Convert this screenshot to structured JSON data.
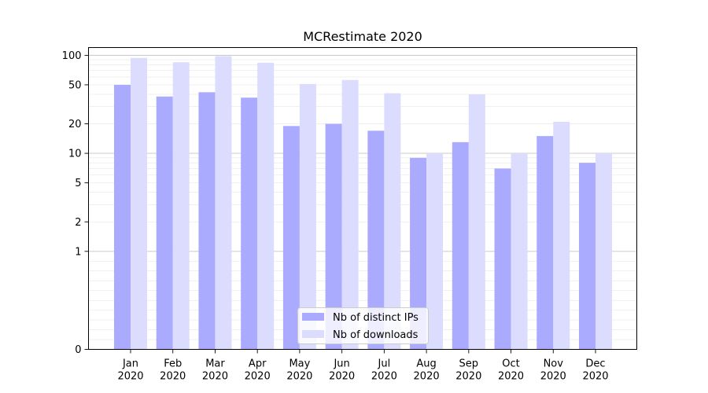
{
  "chart_data": {
    "type": "bar",
    "title": "MCRestimate 2020",
    "xlabel": "",
    "ylabel": "",
    "yscale": "symlog",
    "ylim": [
      0,
      120
    ],
    "yticks": [
      0,
      1,
      2,
      5,
      10,
      20,
      50,
      100
    ],
    "ytick_labels": [
      "0",
      "1",
      "2",
      "5",
      "10",
      "20",
      "50",
      "100"
    ],
    "grid": true,
    "legend_position": "bottom-center",
    "categories": [
      [
        "Jan",
        "2020"
      ],
      [
        "Feb",
        "2020"
      ],
      [
        "Mar",
        "2020"
      ],
      [
        "Apr",
        "2020"
      ],
      [
        "May",
        "2020"
      ],
      [
        "Jun",
        "2020"
      ],
      [
        "Jul",
        "2020"
      ],
      [
        "Aug",
        "2020"
      ],
      [
        "Sep",
        "2020"
      ],
      [
        "Oct",
        "2020"
      ],
      [
        "Nov",
        "2020"
      ],
      [
        "Dec",
        "2020"
      ]
    ],
    "series": [
      {
        "name": "Nb of distinct IPs",
        "color": "#aaaaff",
        "values": [
          50,
          38,
          42,
          37,
          19,
          20,
          17,
          9,
          13,
          7,
          15,
          8
        ]
      },
      {
        "name": "Nb of downloads",
        "color": "#dcdcff",
        "values": [
          94,
          85,
          98,
          84,
          51,
          56,
          41,
          10,
          40,
          10,
          21,
          10
        ]
      }
    ]
  }
}
